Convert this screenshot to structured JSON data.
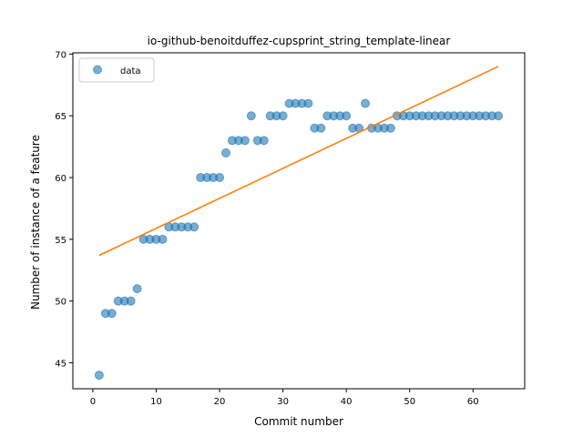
{
  "chart_data": {
    "type": "scatter",
    "title": "io-github-benoitduffez-cupsprint_string_template-linear",
    "xlabel": "Commit number",
    "ylabel": "Number of instance of a feature",
    "xlim": [
      -3.15,
      68.15
    ],
    "ylim": [
      42.9,
      70.1
    ],
    "xticks": [
      0,
      10,
      20,
      30,
      40,
      50,
      60
    ],
    "yticks": [
      45,
      50,
      55,
      60,
      65,
      70
    ],
    "grid": false,
    "legend": "top-left",
    "series": [
      {
        "name": "data",
        "kind": "scatter",
        "color": "#1f77b4",
        "x": [
          1,
          2,
          3,
          4,
          5,
          6,
          7,
          8,
          9,
          10,
          11,
          12,
          13,
          14,
          15,
          16,
          17,
          18,
          19,
          20,
          21,
          22,
          23,
          24,
          25,
          26,
          27,
          28,
          29,
          30,
          31,
          32,
          33,
          34,
          35,
          36,
          37,
          38,
          39,
          40,
          41,
          42,
          43,
          44,
          45,
          46,
          47,
          48,
          49,
          50,
          51,
          52,
          53,
          54,
          55,
          56,
          57,
          58,
          59,
          60,
          61,
          62,
          63,
          64
        ],
        "y": [
          44,
          49,
          49,
          50,
          50,
          50,
          51,
          55,
          55,
          55,
          55,
          56,
          56,
          56,
          56,
          56,
          60,
          60,
          60,
          60,
          62,
          63,
          63,
          63,
          65,
          63,
          63,
          65,
          65,
          65,
          66,
          66,
          66,
          66,
          64,
          64,
          65,
          65,
          65,
          65,
          64,
          64,
          66,
          64,
          64,
          64,
          64,
          65,
          65,
          65,
          65,
          65,
          65,
          65,
          65,
          65,
          65,
          65,
          65,
          65,
          65,
          65,
          65,
          65
        ]
      },
      {
        "kind": "line",
        "color": "#ff7f0e",
        "x": [
          1,
          64
        ],
        "y": [
          53.7,
          69.0
        ]
      }
    ]
  }
}
